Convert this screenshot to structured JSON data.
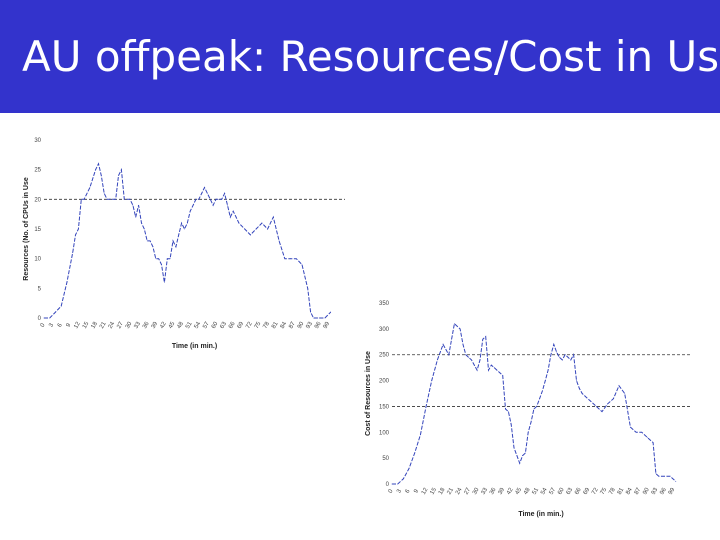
{
  "header": {
    "title": "AU offpeak: Resources/Cost in Use",
    "background": "#3333cc",
    "text_color": "#ffffff"
  },
  "chart_data": [
    {
      "type": "line",
      "ylabel": "Resources (No. of CPUs in Use",
      "xlabel": "Time (in min.)",
      "ylim": [
        0,
        30
      ],
      "yticks": [
        0,
        5,
        10,
        15,
        20,
        25,
        30
      ],
      "xlim": [
        0,
        105
      ],
      "xticks": [
        0,
        3,
        6,
        9,
        12,
        15,
        18,
        21,
        24,
        27,
        30,
        33,
        36,
        39,
        42,
        45,
        48,
        51,
        54,
        57,
        60,
        63,
        66,
        69,
        72,
        75,
        78,
        81,
        84,
        87,
        90,
        93,
        96,
        99
      ],
      "reference_line": 20,
      "line_color": "#3344bb",
      "series": [
        {
          "x": [
            0,
            2,
            4,
            6,
            8,
            10,
            11,
            12,
            13,
            14,
            16,
            18,
            19,
            20,
            21,
            22,
            24,
            25,
            26,
            27,
            28,
            29,
            30,
            31,
            32,
            33,
            34,
            35,
            36,
            37,
            38,
            39,
            40,
            41,
            42,
            43,
            44,
            45,
            46,
            47,
            48,
            49,
            50,
            51,
            52,
            53,
            54,
            55,
            56,
            57,
            58,
            59,
            60,
            61,
            62,
            63,
            64,
            65,
            66,
            67,
            68,
            70,
            72,
            74,
            76,
            78,
            80,
            82,
            84,
            86,
            88,
            90,
            92,
            93,
            94,
            96,
            98,
            100
          ],
          "values": [
            0,
            0,
            1,
            2,
            6,
            11,
            14,
            15,
            20,
            20,
            22,
            25,
            26,
            24,
            21,
            20,
            20,
            20,
            24,
            25,
            20,
            20,
            20,
            19,
            17,
            19,
            16,
            15,
            13,
            13,
            12,
            10,
            10,
            9,
            6,
            10,
            10,
            13,
            12,
            14,
            16,
            15,
            16,
            18,
            19,
            20,
            20,
            21,
            22,
            21,
            20,
            19,
            20,
            20,
            20,
            21,
            19,
            17,
            18,
            17,
            16,
            15,
            14,
            15,
            16,
            15,
            17,
            13,
            10,
            10,
            10,
            9,
            5,
            1,
            0,
            0,
            0,
            1
          ]
        }
      ]
    },
    {
      "type": "line",
      "ylabel": "Cost of Resources in Use",
      "xlabel": "Time (in min.)",
      "ylim": [
        0,
        350
      ],
      "yticks": [
        0,
        50,
        100,
        150,
        200,
        250,
        300,
        350
      ],
      "xlim": [
        0,
        105
      ],
      "xticks": [
        0,
        3,
        6,
        9,
        12,
        15,
        18,
        21,
        24,
        27,
        30,
        33,
        36,
        39,
        42,
        45,
        48,
        51,
        54,
        57,
        60,
        63,
        66,
        69,
        72,
        75,
        78,
        81,
        84,
        87,
        90,
        93,
        96,
        99
      ],
      "reference_lines": [
        250,
        150
      ],
      "line_color": "#3344bb",
      "series": [
        {
          "x": [
            0,
            2,
            4,
            6,
            8,
            10,
            12,
            14,
            16,
            18,
            19,
            20,
            21,
            22,
            24,
            25,
            26,
            27,
            28,
            29,
            30,
            31,
            32,
            33,
            34,
            35,
            36,
            37,
            38,
            39,
            40,
            41,
            42,
            43,
            44,
            45,
            46,
            47,
            48,
            49,
            50,
            51,
            52,
            53,
            54,
            55,
            56,
            57,
            58,
            59,
            60,
            61,
            62,
            63,
            64,
            65,
            66,
            67,
            68,
            70,
            72,
            74,
            76,
            78,
            80,
            82,
            84,
            86,
            88,
            90,
            92,
            93,
            94,
            96,
            98,
            100
          ],
          "values": [
            0,
            0,
            10,
            30,
            60,
            95,
            150,
            200,
            240,
            270,
            260,
            250,
            280,
            310,
            300,
            270,
            250,
            245,
            240,
            230,
            220,
            240,
            280,
            285,
            220,
            230,
            225,
            220,
            215,
            210,
            145,
            140,
            115,
            70,
            55,
            40,
            55,
            60,
            100,
            120,
            145,
            150,
            165,
            180,
            200,
            220,
            250,
            270,
            255,
            245,
            240,
            250,
            245,
            240,
            250,
            200,
            185,
            175,
            170,
            160,
            150,
            140,
            155,
            165,
            190,
            175,
            110,
            100,
            100,
            90,
            80,
            20,
            15,
            15,
            15,
            5
          ]
        }
      ]
    }
  ]
}
